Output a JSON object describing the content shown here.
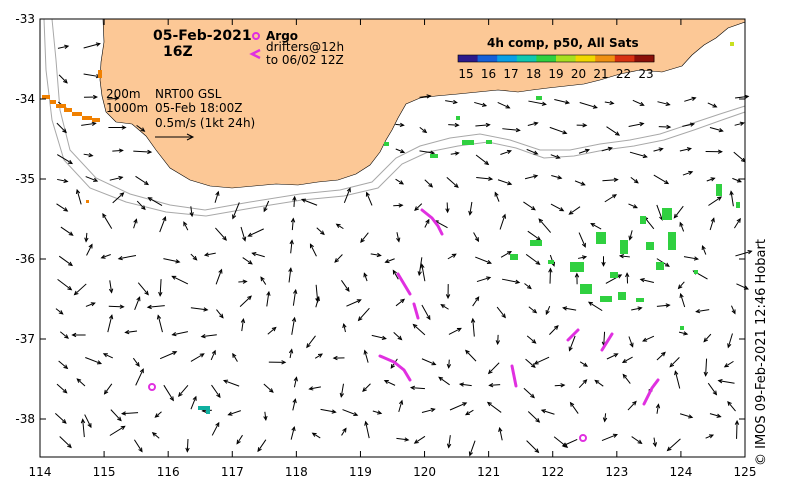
{
  "header": {
    "date": "05-Feb-2021",
    "time": "16Z"
  },
  "legend": {
    "argo_label": "Argo",
    "drifters_label_1": "drifters@12h",
    "drifters_label_2": "to 06/02 12Z",
    "depth_200": "200m",
    "depth_1000": "1000m",
    "gsl_product": "NRT00 GSL",
    "gsl_time": "05-Feb 18:00Z",
    "velocity_scale": "0.5m/s (1kt 24h)"
  },
  "colorbar": {
    "title": "4h comp, p50, All Sats",
    "ticks": [
      "15",
      "16",
      "17",
      "18",
      "19",
      "20",
      "21",
      "22",
      "23"
    ],
    "colors": [
      "#2b1a8c",
      "#1560d8",
      "#0aa0e6",
      "#10c8b0",
      "#30d040",
      "#a8e020",
      "#f0d800",
      "#f09010",
      "#d83010",
      "#8c1008"
    ]
  },
  "axes": {
    "x_ticks": [
      "114",
      "115",
      "116",
      "117",
      "118",
      "119",
      "120",
      "121",
      "122",
      "123",
      "124",
      "125"
    ],
    "y_ticks": [
      "-33",
      "-34",
      "-35",
      "-36",
      "-37",
      "-38"
    ]
  },
  "credit": "© IMOS 09-Feb-2021 12:46 Hobart",
  "colors": {
    "land": "#fcc896",
    "argo": "#e030e0",
    "drifter": "#e030e0",
    "sst_green": "#30d040",
    "sst_orange": "#f08000",
    "sst_teal": "#10b0a0",
    "bathy": "#a8a8a8"
  }
}
